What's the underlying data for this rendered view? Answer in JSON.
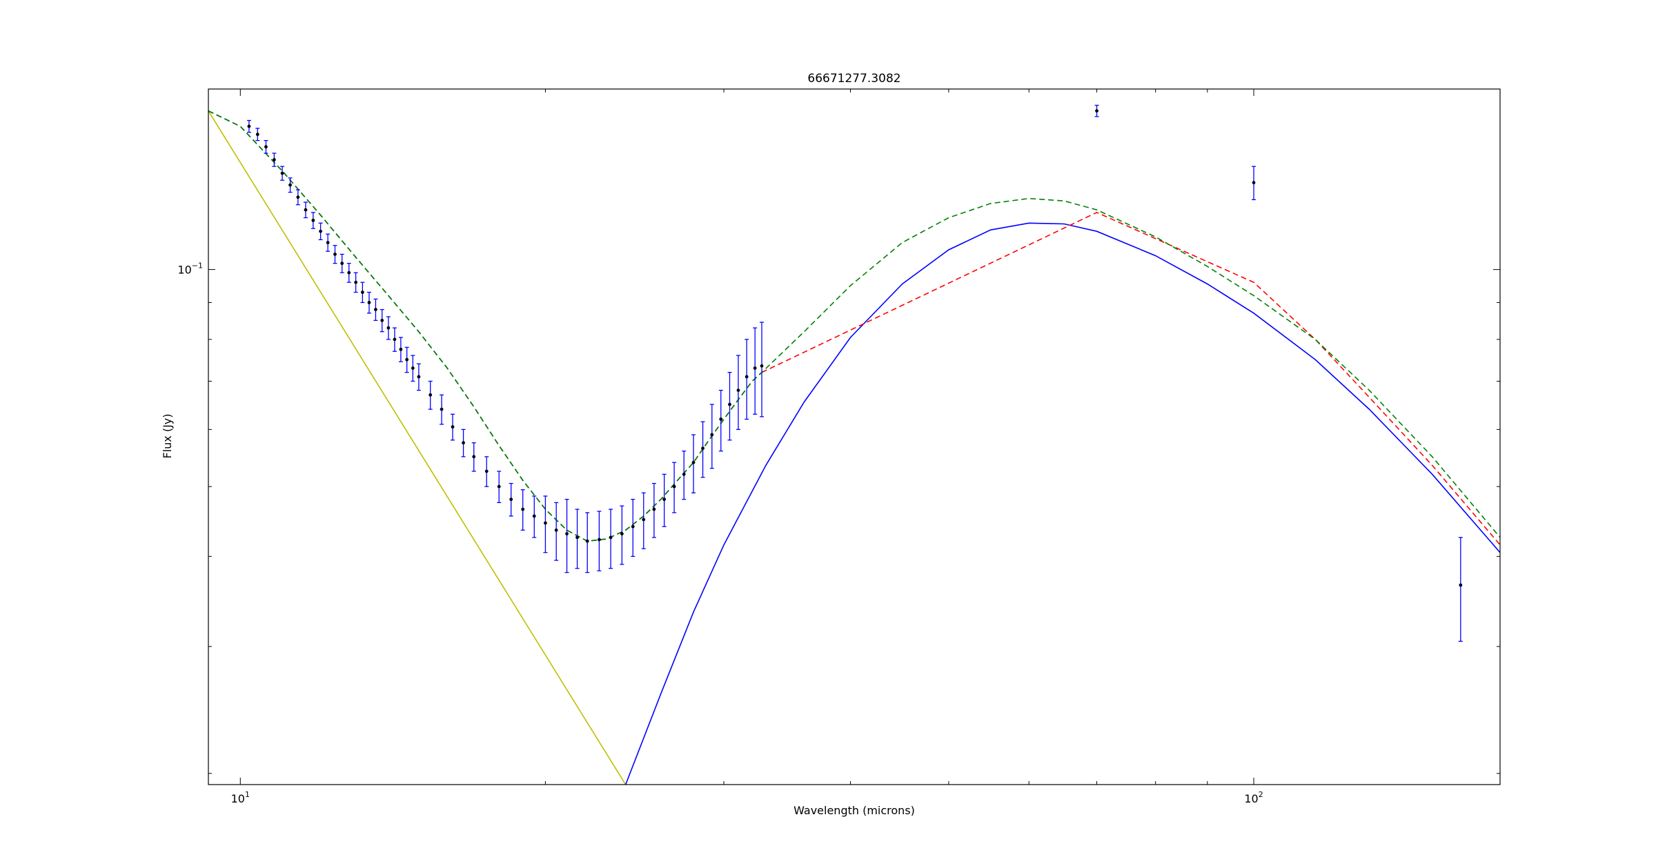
{
  "chart_data": {
    "type": "scatter",
    "title": "66671277.3082",
    "xlabel": "Wavelength (microns)",
    "ylabel": "Flux (Jy)",
    "xscale": "log",
    "yscale": "log",
    "xlim": [
      9.3,
      175
    ],
    "ylim": [
      0.0193,
      0.178
    ],
    "grid": false,
    "x_ticks": [
      {
        "value": 10,
        "base": "10",
        "exp": "1"
      },
      {
        "value": 100,
        "base": "10",
        "exp": "2"
      }
    ],
    "y_ticks": [
      {
        "value": 0.1,
        "base": "10",
        "exp": "−1"
      }
    ],
    "series": [
      {
        "kind": "errorbar",
        "marker_color": "#000000",
        "errbar_color": "#0000ff",
        "points": [
          {
            "x": 10.2,
            "y": 0.158,
            "e": 0.003
          },
          {
            "x": 10.4,
            "y": 0.154,
            "e": 0.003
          },
          {
            "x": 10.6,
            "y": 0.148,
            "e": 0.003
          },
          {
            "x": 10.8,
            "y": 0.142,
            "e": 0.003
          },
          {
            "x": 11.0,
            "y": 0.136,
            "e": 0.003
          },
          {
            "x": 11.2,
            "y": 0.131,
            "e": 0.003
          },
          {
            "x": 11.4,
            "y": 0.126,
            "e": 0.003
          },
          {
            "x": 11.6,
            "y": 0.121,
            "e": 0.003
          },
          {
            "x": 11.8,
            "y": 0.117,
            "e": 0.003
          },
          {
            "x": 12.0,
            "y": 0.113,
            "e": 0.003
          },
          {
            "x": 12.2,
            "y": 0.109,
            "e": 0.003
          },
          {
            "x": 12.4,
            "y": 0.105,
            "e": 0.003
          },
          {
            "x": 12.6,
            "y": 0.102,
            "e": 0.003
          },
          {
            "x": 12.8,
            "y": 0.099,
            "e": 0.003
          },
          {
            "x": 13.0,
            "y": 0.096,
            "e": 0.003
          },
          {
            "x": 13.2,
            "y": 0.093,
            "e": 0.003
          },
          {
            "x": 13.4,
            "y": 0.09,
            "e": 0.003
          },
          {
            "x": 13.6,
            "y": 0.088,
            "e": 0.003
          },
          {
            "x": 13.8,
            "y": 0.085,
            "e": 0.003
          },
          {
            "x": 14.0,
            "y": 0.083,
            "e": 0.003
          },
          {
            "x": 14.2,
            "y": 0.08,
            "e": 0.003
          },
          {
            "x": 14.4,
            "y": 0.0775,
            "e": 0.003
          },
          {
            "x": 14.6,
            "y": 0.075,
            "e": 0.003
          },
          {
            "x": 14.8,
            "y": 0.073,
            "e": 0.003
          },
          {
            "x": 15.0,
            "y": 0.071,
            "e": 0.003
          },
          {
            "x": 15.4,
            "y": 0.067,
            "e": 0.003
          },
          {
            "x": 15.8,
            "y": 0.064,
            "e": 0.003
          },
          {
            "x": 16.2,
            "y": 0.0605,
            "e": 0.0025
          },
          {
            "x": 16.6,
            "y": 0.0575,
            "e": 0.0025
          },
          {
            "x": 17.0,
            "y": 0.055,
            "e": 0.0025
          },
          {
            "x": 17.5,
            "y": 0.0525,
            "e": 0.0025
          },
          {
            "x": 18.0,
            "y": 0.05,
            "e": 0.0025
          },
          {
            "x": 18.5,
            "y": 0.048,
            "e": 0.0025
          },
          {
            "x": 19.0,
            "y": 0.0465,
            "e": 0.003
          },
          {
            "x": 19.5,
            "y": 0.0455,
            "e": 0.003
          },
          {
            "x": 20.0,
            "y": 0.0445,
            "e": 0.004
          },
          {
            "x": 20.5,
            "y": 0.0435,
            "e": 0.004
          },
          {
            "x": 21.0,
            "y": 0.043,
            "e": 0.005
          },
          {
            "x": 21.5,
            "y": 0.0425,
            "e": 0.004
          },
          {
            "x": 22.0,
            "y": 0.042,
            "e": 0.004
          },
          {
            "x": 22.6,
            "y": 0.0422,
            "e": 0.004
          },
          {
            "x": 23.2,
            "y": 0.0425,
            "e": 0.004
          },
          {
            "x": 23.8,
            "y": 0.043,
            "e": 0.004
          },
          {
            "x": 24.4,
            "y": 0.044,
            "e": 0.004
          },
          {
            "x": 25.0,
            "y": 0.045,
            "e": 0.004
          },
          {
            "x": 25.6,
            "y": 0.0465,
            "e": 0.004
          },
          {
            "x": 26.2,
            "y": 0.048,
            "e": 0.004
          },
          {
            "x": 26.8,
            "y": 0.05,
            "e": 0.004
          },
          {
            "x": 27.4,
            "y": 0.052,
            "e": 0.004
          },
          {
            "x": 28.0,
            "y": 0.054,
            "e": 0.005
          },
          {
            "x": 28.6,
            "y": 0.0565,
            "e": 0.005
          },
          {
            "x": 29.2,
            "y": 0.059,
            "e": 0.006
          },
          {
            "x": 29.8,
            "y": 0.062,
            "e": 0.006
          },
          {
            "x": 30.4,
            "y": 0.065,
            "e": 0.007
          },
          {
            "x": 31.0,
            "y": 0.068,
            "e": 0.008
          },
          {
            "x": 31.6,
            "y": 0.071,
            "e": 0.009
          },
          {
            "x": 32.2,
            "y": 0.073,
            "e": 0.01
          },
          {
            "x": 32.7,
            "y": 0.0735,
            "e": 0.011
          }
        ]
      },
      {
        "kind": "errorbar_photometry",
        "marker_color": "#000000",
        "errbar_color": "#0000ff",
        "points": [
          {
            "x": 70,
            "y": 0.166,
            "e": 0.003
          },
          {
            "x": 100,
            "y": 0.132,
            "e": 0.007
          },
          {
            "x": 160,
            "y": 0.0365,
            "e": 0.006
          }
        ]
      },
      {
        "kind": "line",
        "style": "solid",
        "color": "#bfbf00",
        "x": [
          9.3,
          24
        ],
        "y": [
          0.166,
          0.0193
        ]
      },
      {
        "kind": "line",
        "style": "solid",
        "color": "#0000ff",
        "x": [
          24,
          26,
          28,
          30,
          33,
          36,
          40,
          45,
          50,
          55,
          60,
          65,
          70,
          80,
          90,
          100,
          115,
          130,
          150,
          175
        ],
        "y": [
          0.0193,
          0.0258,
          0.0335,
          0.0415,
          0.0535,
          0.0655,
          0.0805,
          0.0955,
          0.1065,
          0.1135,
          0.116,
          0.1157,
          0.113,
          0.1045,
          0.0955,
          0.087,
          0.075,
          0.064,
          0.052,
          0.0405
        ]
      },
      {
        "kind": "line",
        "style": "dashed",
        "color": "#000000",
        "x": [
          9.3,
          10,
          11,
          12,
          13,
          14,
          15,
          16,
          17,
          18,
          19,
          20,
          21,
          22,
          23,
          24,
          25,
          26,
          27,
          28,
          29,
          30,
          31,
          32,
          32.7
        ],
        "y": [
          0.166,
          0.158,
          0.137,
          0.119,
          0.104,
          0.092,
          0.082,
          0.073,
          0.0645,
          0.057,
          0.051,
          0.0465,
          0.0435,
          0.042,
          0.0423,
          0.0435,
          0.0455,
          0.048,
          0.051,
          0.054,
          0.058,
          0.062,
          0.066,
          0.07,
          0.072
        ]
      },
      {
        "kind": "line",
        "style": "dashed",
        "color": "#ff0000",
        "x": [
          32.7,
          70,
          100,
          115,
          130,
          150,
          175
        ],
        "y": [
          0.072,
          0.12,
          0.096,
          0.08,
          0.0665,
          0.0535,
          0.0415
        ]
      },
      {
        "kind": "line",
        "style": "dashed",
        "color": "#008000",
        "x": [
          9.3,
          10,
          11,
          12,
          13,
          14,
          15,
          16,
          17,
          18,
          19,
          20,
          21,
          22,
          23,
          24,
          25,
          26,
          27,
          28,
          29,
          30,
          31,
          32,
          32.7,
          36,
          40,
          45,
          50,
          55,
          60,
          65,
          70,
          80,
          90,
          100,
          115,
          130,
          150,
          175
        ],
        "y": [
          0.166,
          0.158,
          0.137,
          0.119,
          0.104,
          0.092,
          0.082,
          0.073,
          0.0645,
          0.057,
          0.051,
          0.0465,
          0.0435,
          0.042,
          0.0423,
          0.0435,
          0.0455,
          0.048,
          0.051,
          0.054,
          0.058,
          0.062,
          0.066,
          0.07,
          0.072,
          0.082,
          0.095,
          0.109,
          0.118,
          0.1235,
          0.1255,
          0.1245,
          0.121,
          0.111,
          0.101,
          0.092,
          0.08,
          0.068,
          0.055,
          0.0425
        ]
      }
    ]
  }
}
